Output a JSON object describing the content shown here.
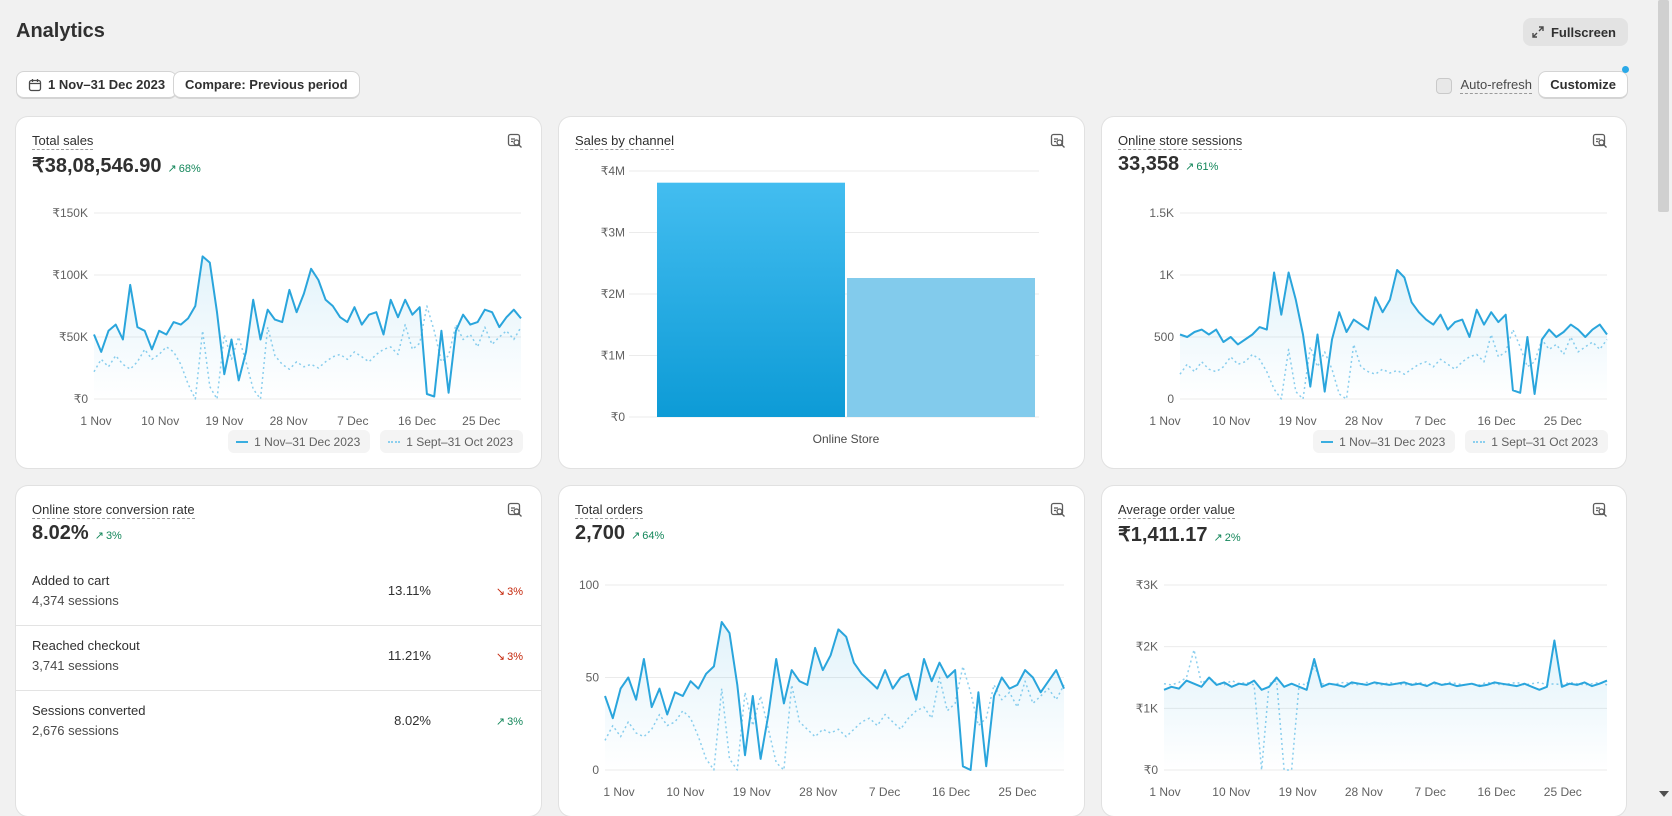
{
  "page": {
    "title": "Analytics",
    "fullscreen_label": "Fullscreen"
  },
  "toolbar": {
    "date_range": "1 Nov–31 Dec 2023",
    "compare_label": "Compare: Previous period",
    "auto_refresh_label": "Auto-refresh",
    "auto_refresh_checked": false,
    "customize_label": "Customize"
  },
  "legend": {
    "current": "1 Nov–31 Dec 2023",
    "previous": "1 Sept–31 Oct 2023"
  },
  "colors": {
    "accent": "#2aa5dc",
    "positive": "#14875b",
    "negative": "#c5280c",
    "bar_primary": "#1aa6e0",
    "bar_secondary": "#82cbec"
  },
  "cards": {
    "total_sales": {
      "title": "Total sales",
      "value": "₹38,08,546.90",
      "delta": "68%",
      "delta_direction": "up"
    },
    "sales_by_channel": {
      "title": "Sales by channel"
    },
    "sessions": {
      "title": "Online store sessions",
      "value": "33,358",
      "delta": "61%",
      "delta_direction": "up"
    },
    "conversion": {
      "title": "Online store conversion rate",
      "value": "8.02%",
      "delta": "3%",
      "rows": [
        {
          "label": "Added to cart",
          "sub": "4,374 sessions",
          "rate": "13.11%",
          "delta": "3%",
          "direction": "down"
        },
        {
          "label": "Reached checkout",
          "sub": "3,741 sessions",
          "rate": "11.21%",
          "delta": "3%",
          "direction": "down"
        },
        {
          "label": "Sessions converted",
          "sub": "2,676 sessions",
          "rate": "8.02%",
          "delta": "3%",
          "direction": "up"
        }
      ]
    },
    "orders": {
      "title": "Total orders",
      "value": "2,700",
      "delta": "64%",
      "delta_direction": "up"
    },
    "aov": {
      "title": "Average order value",
      "value": "₹1,411.17",
      "delta": "2%",
      "delta_direction": "up"
    }
  },
  "chart_data": [
    {
      "id": "total_sales",
      "type": "line",
      "x_ticks": [
        "1 Nov",
        "10 Nov",
        "19 Nov",
        "28 Nov",
        "7 Dec",
        "16 Dec",
        "25 Dec"
      ],
      "y_ticks": [
        "₹0",
        "₹50K",
        "₹100K",
        "₹150K"
      ],
      "ylim": [
        0,
        150000
      ],
      "series": [
        {
          "name": "1 Nov–31 Dec 2023",
          "style": "solid",
          "values": [
            52000,
            38000,
            55000,
            60000,
            48000,
            92000,
            58000,
            55000,
            40000,
            55000,
            52000,
            62000,
            60000,
            65000,
            75000,
            115000,
            110000,
            70000,
            20000,
            48000,
            15000,
            38000,
            80000,
            48000,
            72000,
            64000,
            62000,
            88000,
            70000,
            85000,
            105000,
            96000,
            80000,
            75000,
            66000,
            62000,
            74000,
            60000,
            68000,
            70000,
            52000,
            80000,
            66000,
            80000,
            68000,
            74000,
            4000,
            2000,
            55000,
            5000,
            55000,
            68000,
            60000,
            62000,
            72000,
            70000,
            58000,
            66000,
            72000,
            65000
          ]
        },
        {
          "name": "1 Sept–31 Oct 2023",
          "style": "dotted",
          "values": [
            22000,
            32000,
            26000,
            35000,
            28000,
            24000,
            30000,
            40000,
            32000,
            36000,
            42000,
            38000,
            28000,
            12000,
            0,
            55000,
            10000,
            0,
            52000,
            32000,
            50000,
            30000,
            8000,
            0,
            58000,
            35000,
            28000,
            24000,
            30000,
            26000,
            28000,
            25000,
            30000,
            34000,
            36000,
            32000,
            38000,
            34000,
            30000,
            36000,
            40000,
            42000,
            36000,
            60000,
            40000,
            45000,
            75000,
            55000,
            30000,
            35000,
            60000,
            48000,
            52000,
            42000,
            58000,
            44000,
            50000,
            55000,
            48000,
            58000
          ]
        }
      ]
    },
    {
      "id": "sales_by_channel",
      "type": "bar",
      "categories": [
        "Online Store"
      ],
      "series": [
        {
          "name": "1 Nov–31 Dec 2023",
          "values": [
            3810000
          ]
        },
        {
          "name": "1 Sept–31 Oct 2023",
          "values": [
            2260000
          ]
        }
      ],
      "y_ticks": [
        "₹0",
        "₹1M",
        "₹2M",
        "₹3M",
        "₹4M"
      ],
      "ylim": [
        0,
        4000000
      ]
    },
    {
      "id": "sessions",
      "type": "line",
      "x_ticks": [
        "1 Nov",
        "10 Nov",
        "19 Nov",
        "28 Nov",
        "7 Dec",
        "16 Dec",
        "25 Dec"
      ],
      "y_ticks": [
        "0",
        "500",
        "1K",
        "1.5K"
      ],
      "ylim": [
        0,
        1500
      ],
      "series": [
        {
          "name": "1 Nov–31 Dec 2023",
          "style": "solid",
          "values": [
            520,
            500,
            540,
            560,
            520,
            560,
            460,
            500,
            440,
            480,
            520,
            580,
            560,
            1020,
            680,
            1020,
            800,
            520,
            100,
            520,
            60,
            480,
            700,
            540,
            640,
            600,
            560,
            820,
            700,
            800,
            1040,
            980,
            780,
            700,
            640,
            600,
            680,
            560,
            620,
            640,
            500,
            720,
            600,
            700,
            620,
            680,
            70,
            50,
            500,
            40,
            480,
            560,
            500,
            540,
            600,
            560,
            500,
            560,
            600,
            520
          ]
        },
        {
          "name": "1 Sept–31 Oct 2023",
          "style": "dotted",
          "values": [
            200,
            280,
            220,
            300,
            240,
            220,
            260,
            340,
            280,
            300,
            360,
            320,
            220,
            80,
            0,
            400,
            60,
            0,
            420,
            260,
            380,
            240,
            40,
            0,
            440,
            260,
            220,
            200,
            240,
            210,
            230,
            200,
            240,
            280,
            300,
            260,
            320,
            280,
            240,
            300,
            340,
            360,
            300,
            520,
            340,
            380,
            560,
            420,
            260,
            300,
            480,
            400,
            440,
            360,
            500,
            380,
            420,
            460,
            400,
            480
          ]
        }
      ]
    },
    {
      "id": "orders",
      "type": "line",
      "x_ticks": [
        "1 Nov",
        "10 Nov",
        "19 Nov",
        "28 Nov",
        "7 Dec",
        "16 Dec",
        "25 Dec"
      ],
      "y_ticks": [
        "0",
        "50",
        "100"
      ],
      "ylim": [
        0,
        100
      ],
      "series": [
        {
          "name": "1 Nov–31 Dec 2023",
          "style": "solid",
          "values": [
            40,
            28,
            44,
            50,
            38,
            60,
            34,
            44,
            30,
            42,
            40,
            48,
            44,
            52,
            56,
            80,
            74,
            46,
            8,
            40,
            6,
            30,
            60,
            36,
            54,
            48,
            46,
            66,
            54,
            62,
            76,
            72,
            58,
            52,
            48,
            44,
            54,
            44,
            50,
            52,
            38,
            60,
            48,
            58,
            50,
            54,
            2,
            0,
            42,
            2,
            40,
            50,
            44,
            46,
            54,
            50,
            42,
            48,
            54,
            44
          ]
        },
        {
          "name": "1 Sept–31 Oct 2023",
          "style": "dotted",
          "values": [
            16,
            24,
            18,
            26,
            20,
            18,
            22,
            30,
            24,
            26,
            32,
            28,
            18,
            6,
            0,
            44,
            6,
            0,
            42,
            24,
            40,
            22,
            4,
            0,
            46,
            26,
            22,
            18,
            22,
            20,
            22,
            18,
            22,
            26,
            28,
            24,
            30,
            26,
            22,
            28,
            32,
            34,
            28,
            50,
            32,
            36,
            56,
            42,
            24,
            28,
            46,
            38,
            42,
            34,
            48,
            36,
            40,
            44,
            38,
            46
          ]
        }
      ]
    },
    {
      "id": "aov",
      "type": "line",
      "x_ticks": [
        "1 Nov",
        "10 Nov",
        "19 Nov",
        "28 Nov",
        "7 Dec",
        "16 Dec",
        "25 Dec"
      ],
      "y_ticks": [
        "₹0",
        "₹1K",
        "₹2K",
        "₹3K"
      ],
      "ylim": [
        0,
        3000
      ],
      "series": [
        {
          "name": "1 Nov–31 Dec 2023",
          "style": "solid",
          "values": [
            1300,
            1350,
            1320,
            1450,
            1400,
            1350,
            1500,
            1380,
            1420,
            1350,
            1400,
            1380,
            1450,
            1300,
            1350,
            1500,
            1350,
            1400,
            1350,
            1300,
            1800,
            1350,
            1400,
            1380,
            1350,
            1420,
            1400,
            1380,
            1420,
            1400,
            1380,
            1400,
            1420,
            1380,
            1400,
            1360,
            1420,
            1380,
            1400,
            1360,
            1380,
            1400,
            1360,
            1380,
            1420,
            1400,
            1380,
            1360,
            1400,
            1350,
            1300,
            1350,
            2100,
            1350,
            1400,
            1380,
            1420,
            1360,
            1400,
            1450
          ]
        },
        {
          "name": "1 Sept–31 Oct 2023",
          "style": "dotted",
          "values": [
            1400,
            1380,
            1420,
            1500,
            1950,
            1400,
            1500,
            1400,
            1380,
            1450,
            1400,
            1420,
            1380,
            0,
            1400,
            1450,
            0,
            0,
            1400,
            1380,
            1700,
            1400,
            1380,
            1400,
            1420,
            1400,
            1380,
            1420,
            1400,
            1380,
            1420,
            1400,
            1380,
            1400,
            1420,
            1380,
            1400,
            1380,
            1420,
            1400,
            1380,
            1400,
            1380,
            1420,
            1400,
            1380,
            1400,
            1420,
            1380,
            1400,
            1420,
            1380,
            1400,
            1380,
            1420,
            1400,
            1380,
            1400,
            1420,
            1380
          ]
        }
      ]
    }
  ]
}
